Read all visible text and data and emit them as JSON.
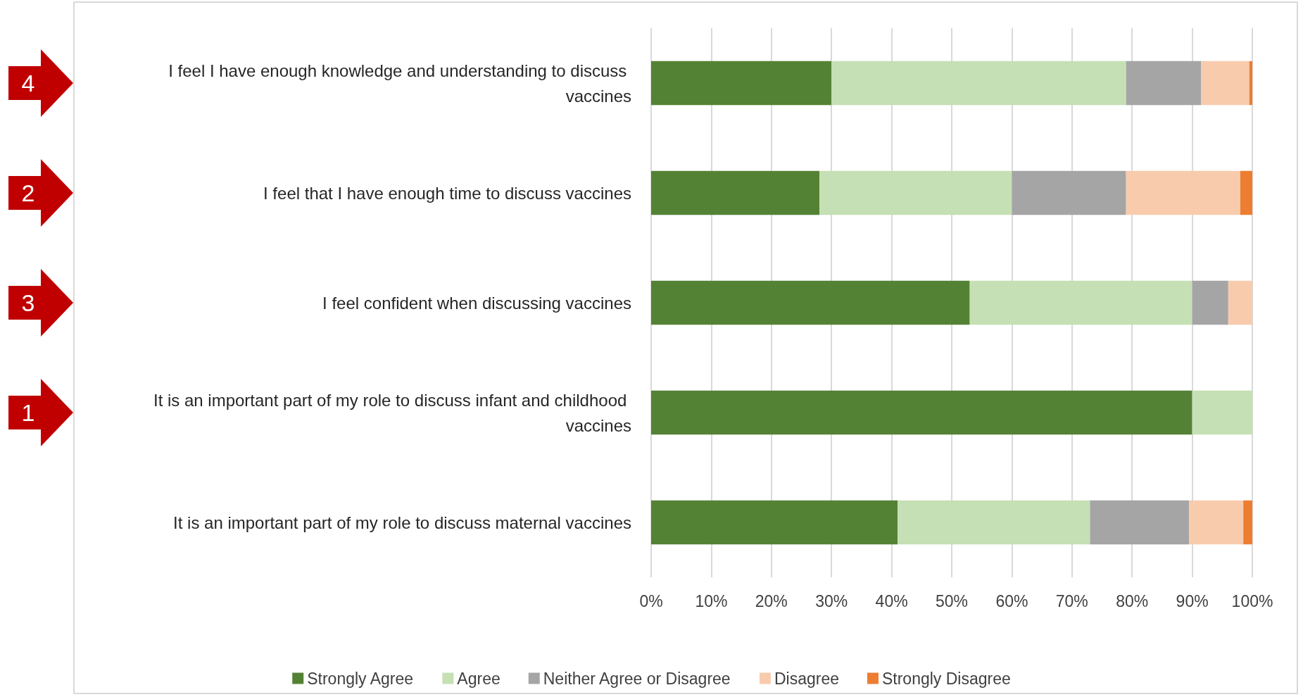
{
  "chart_data": {
    "type": "bar",
    "orientation": "horizontal",
    "stacked": true,
    "categories": [
      "I feel I have enough knowledge and understanding to discuss vaccines",
      "I feel that I have enough time to discuss vaccines",
      "I feel confident when discussing vaccines",
      "It is an important part of my role to discuss infant and childhood vaccines",
      "It is an important part of my role to discuss maternal vaccines"
    ],
    "series": [
      {
        "name": "Strongly Agree",
        "color": "#548235",
        "values": [
          30,
          28,
          53,
          90,
          41
        ]
      },
      {
        "name": "Agree",
        "color": "#c5e0b4",
        "values": [
          49,
          32,
          37,
          10,
          32
        ]
      },
      {
        "name": "Neither Agree or Disagree",
        "color": "#a5a5a5",
        "values": [
          12.5,
          19,
          6,
          0,
          16.5
        ]
      },
      {
        "name": "Disagree",
        "color": "#f8cbad",
        "values": [
          8,
          19,
          4,
          0,
          9
        ]
      },
      {
        "name": "Strongly Disagree",
        "color": "#ed7d31",
        "values": [
          0.5,
          2,
          0,
          0,
          1.5
        ]
      }
    ],
    "xlim": [
      0,
      100
    ],
    "xticks": [
      {
        "value": 0,
        "label": "0%"
      },
      {
        "value": 10,
        "label": "10%"
      },
      {
        "value": 20,
        "label": "20%"
      },
      {
        "value": 30,
        "label": "30%"
      },
      {
        "value": 40,
        "label": "40%"
      },
      {
        "value": 50,
        "label": "50%"
      },
      {
        "value": 60,
        "label": "60%"
      },
      {
        "value": 70,
        "label": "70%"
      },
      {
        "value": 80,
        "label": "80%"
      },
      {
        "value": 90,
        "label": "90%"
      },
      {
        "value": 100,
        "label": "100%"
      }
    ],
    "grid": "x",
    "legend": "bottom",
    "annotations": [
      "4",
      "2",
      "3",
      "1"
    ]
  }
}
